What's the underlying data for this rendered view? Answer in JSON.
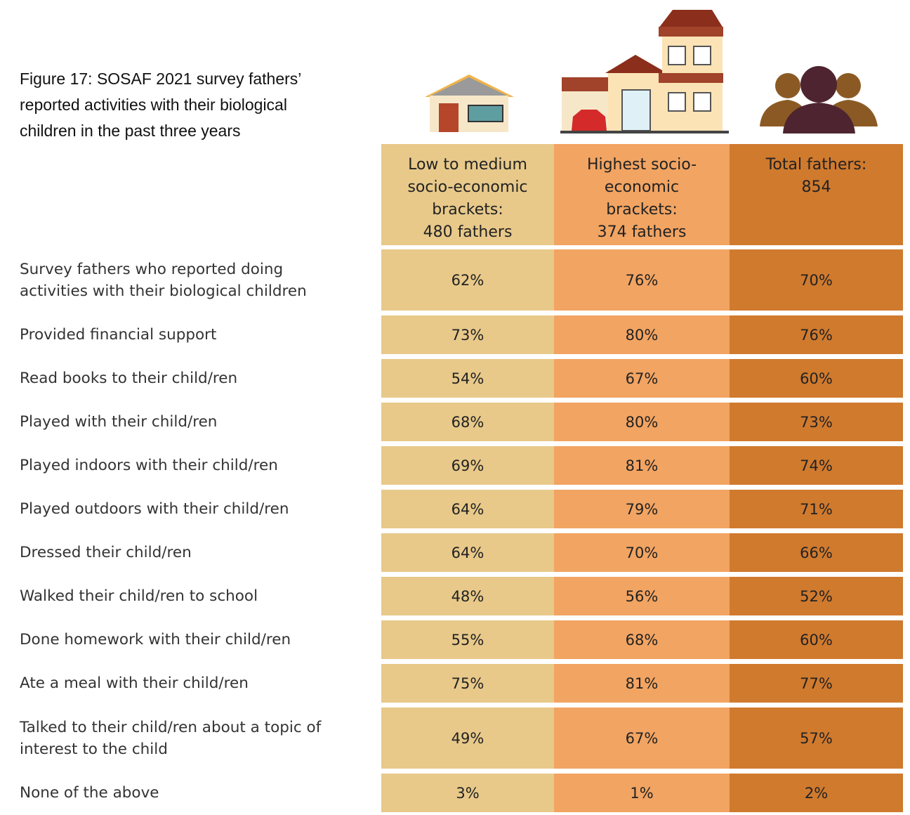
{
  "header": {
    "title_lines": [
      "Figure 17: SOSAF 2021 survey fathers’",
      "reported activities with their biological",
      "children in the past three years"
    ]
  },
  "table": {
    "columns": [
      {
        "lines": [
          "Low to medium",
          "socio-economic",
          "brackets:",
          "480 fathers"
        ],
        "color": "#e8c98a"
      },
      {
        "lines": [
          "Highest socio-",
          "economic",
          "brackets:",
          "374 fathers"
        ],
        "color": "#f2a462"
      },
      {
        "lines": [
          "Total fathers:",
          "854"
        ],
        "color": "#d07a2e"
      }
    ],
    "rows": [
      {
        "label_lines": [
          "Survey fathers who reported doing",
          "activities with their biological children"
        ],
        "cells": [
          "62%",
          "76%",
          "70%"
        ]
      },
      {
        "label_lines": [
          "Provided financial support"
        ],
        "cells": [
          "73%",
          "80%",
          "76%"
        ]
      },
      {
        "label_lines": [
          "Read books to their child/ren"
        ],
        "cells": [
          "54%",
          "67%",
          "60%"
        ]
      },
      {
        "label_lines": [
          "Played with their child/ren"
        ],
        "cells": [
          "68%",
          "80%",
          "73%"
        ]
      },
      {
        "label_lines": [
          "Played indoors with their child/ren"
        ],
        "cells": [
          "69%",
          "81%",
          "74%"
        ]
      },
      {
        "label_lines": [
          "Played outdoors with their child/ren"
        ],
        "cells": [
          "64%",
          "79%",
          "71%"
        ]
      },
      {
        "label_lines": [
          "Dressed their child/ren"
        ],
        "cells": [
          "64%",
          "70%",
          "66%"
        ]
      },
      {
        "label_lines": [
          "Walked their child/ren to school"
        ],
        "cells": [
          "48%",
          "56%",
          "52%"
        ]
      },
      {
        "label_lines": [
          "Done homework with their child/ren"
        ],
        "cells": [
          "55%",
          "68%",
          "60%"
        ]
      },
      {
        "label_lines": [
          "Ate a meal with their child/ren"
        ],
        "cells": [
          "75%",
          "81%",
          "77%"
        ]
      },
      {
        "label_lines": [
          "Talked to their child/ren about a topic of",
          "interest to the child"
        ],
        "cells": [
          "49%",
          "67%",
          "57%"
        ]
      },
      {
        "label_lines": [
          "None of the above"
        ],
        "cells": [
          "3%",
          "1%",
          "2%"
        ]
      }
    ]
  }
}
